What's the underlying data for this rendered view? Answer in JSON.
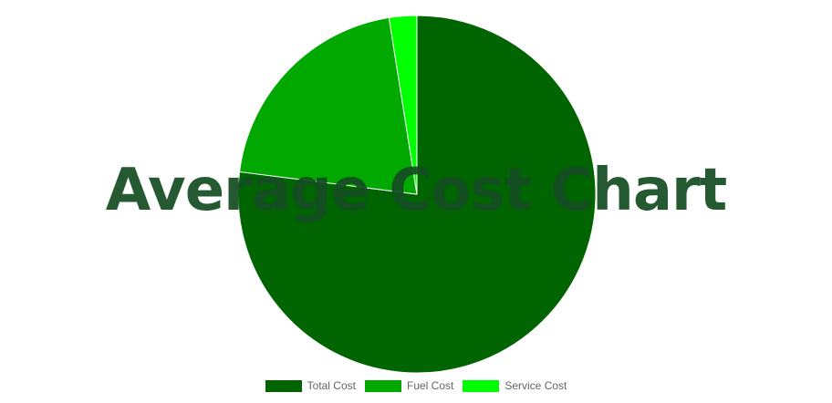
{
  "chart_data": {
    "type": "pie",
    "title": "Average Cost Chart",
    "legend_position": "bottom",
    "slices": [
      {
        "label": "Total Cost",
        "value": 77,
        "color": "#006400"
      },
      {
        "label": "Fuel Cost",
        "value": 20.5,
        "color": "#00a800"
      },
      {
        "label": "Service Cost",
        "value": 2.5,
        "color": "#00ff00"
      }
    ]
  }
}
